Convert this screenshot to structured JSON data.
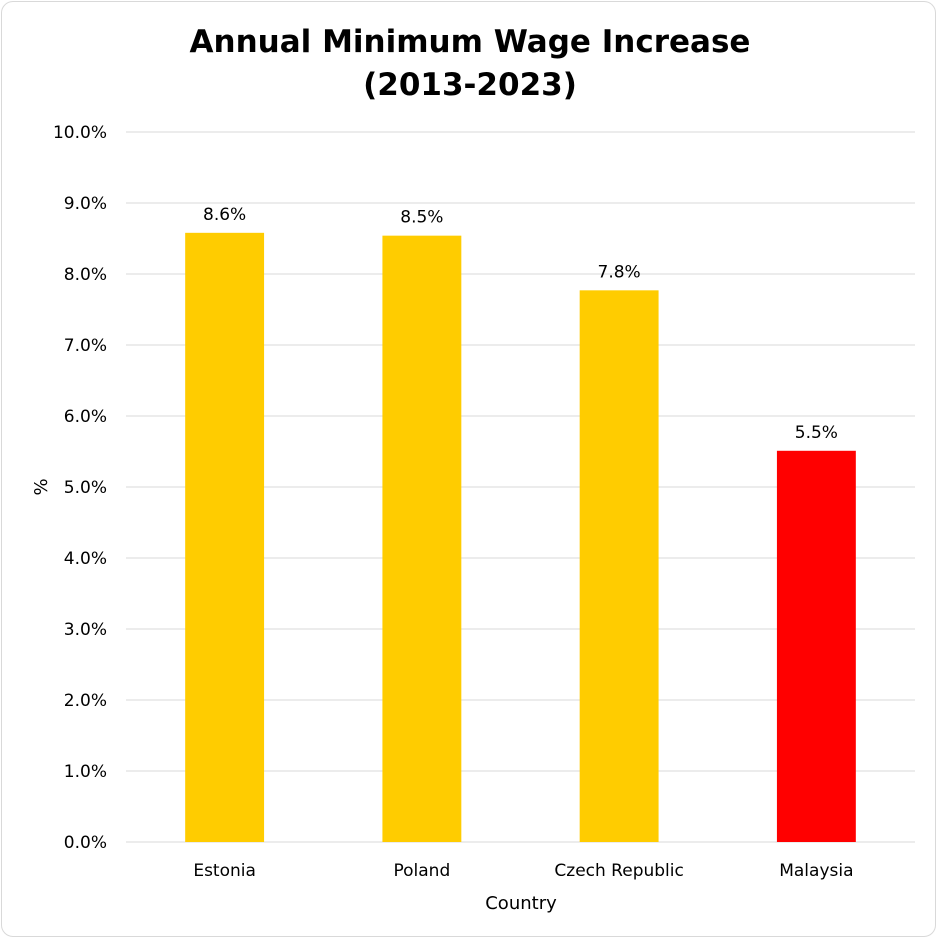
{
  "chart_data": {
    "type": "bar",
    "title_lines": [
      "Annual Minimum Wage Increase",
      "(2013-2023)"
    ],
    "xlabel": "Country",
    "ylabel": "%",
    "categories": [
      "Estonia",
      "Poland",
      "Czech Republic",
      "Malaysia"
    ],
    "values": [
      8.58,
      8.54,
      7.77,
      5.51
    ],
    "data_labels": [
      "8.6%",
      "8.5%",
      "7.8%",
      "5.5%"
    ],
    "bar_colors": [
      "#FFCC00",
      "#FFCC00",
      "#FFCC00",
      "#FF0000"
    ],
    "ylim": [
      0,
      10
    ],
    "yticks": [
      0,
      1,
      2,
      3,
      4,
      5,
      6,
      7,
      8,
      9,
      10
    ],
    "ytick_labels": [
      "0.0%",
      "1.0%",
      "2.0%",
      "3.0%",
      "4.0%",
      "5.0%",
      "6.0%",
      "7.0%",
      "8.0%",
      "9.0%",
      "10.0%"
    ],
    "grid": true,
    "legend": "none"
  }
}
